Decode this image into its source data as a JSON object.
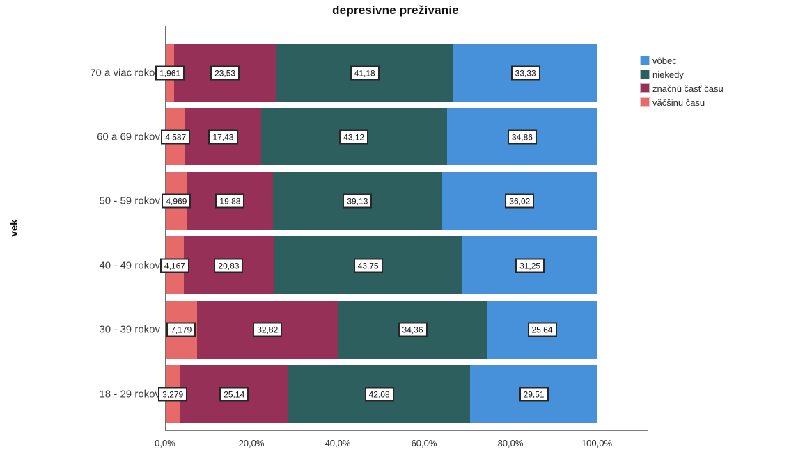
{
  "title": "depresívne prežívanie",
  "y_axis_label": "vek",
  "chart_data": {
    "type": "bar",
    "orientation": "horizontal",
    "stacked": true,
    "title": "depresívne prežívanie",
    "ylabel": "vek",
    "xlabel": "",
    "xlim": [
      0,
      100
    ],
    "grid": false,
    "legend_position": "right",
    "categories": [
      "70 a viac rokov",
      "60 a 69 rokov",
      "50 - 59 rokov",
      "40 - 49 rokov",
      "30 - 39 rokov",
      "18 - 29 rokov"
    ],
    "series": [
      {
        "name": "väčšinu času",
        "color": "#e76a6a",
        "values": [
          1.961,
          4.587,
          4.969,
          4.167,
          7.179,
          3.279
        ],
        "labels": [
          "1,961",
          "4,587",
          "4,969",
          "4,167",
          "7,179",
          "3,279"
        ]
      },
      {
        "name": "značnú časť času",
        "color": "#963057",
        "values": [
          23.53,
          17.43,
          19.88,
          20.83,
          32.82,
          25.14
        ],
        "labels": [
          "23,53",
          "17,43",
          "19,88",
          "20,83",
          "32,82",
          "25,14"
        ]
      },
      {
        "name": "niekedy",
        "color": "#2c5f5d",
        "values": [
          41.18,
          43.12,
          39.13,
          43.75,
          34.36,
          42.08
        ],
        "labels": [
          "41,18",
          "43,12",
          "39,13",
          "43,75",
          "34,36",
          "42,08"
        ]
      },
      {
        "name": "vôbec",
        "color": "#4691da",
        "values": [
          33.33,
          34.86,
          36.02,
          31.25,
          25.64,
          29.51
        ],
        "labels": [
          "33,33",
          "34,86",
          "36,02",
          "31,25",
          "25,64",
          "29,51"
        ]
      }
    ],
    "legend": [
      {
        "label": "vôbec",
        "color": "#4691da"
      },
      {
        "label": "niekedy",
        "color": "#2c5f5d"
      },
      {
        "label": "značnú časť času",
        "color": "#963057"
      },
      {
        "label": "väčšinu času",
        "color": "#e76a6a"
      }
    ],
    "x_ticks": [
      "0,0%",
      "20,0%",
      "40,0%",
      "60,0%",
      "80,0%",
      "100,0%"
    ],
    "x_tick_values": [
      0,
      20,
      40,
      60,
      80,
      100
    ]
  }
}
